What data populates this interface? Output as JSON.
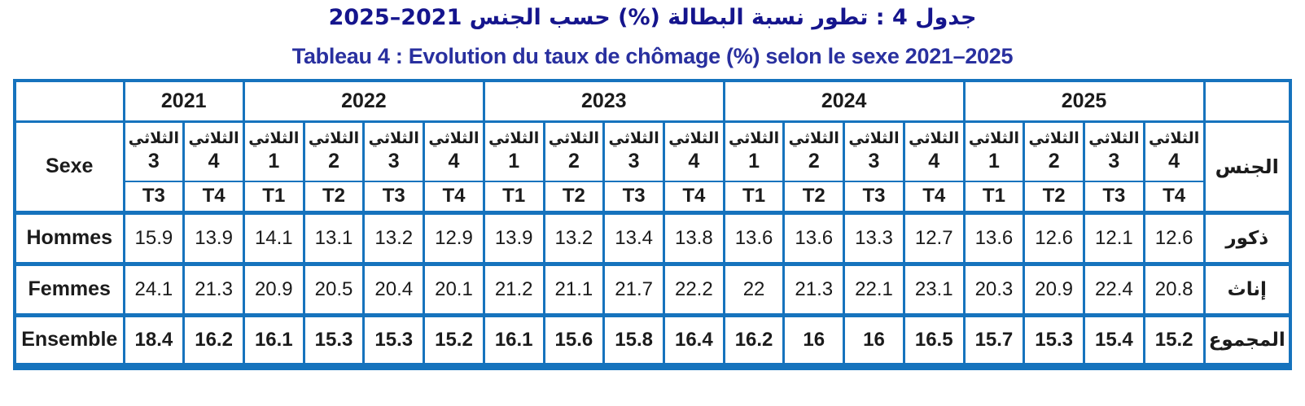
{
  "titles": {
    "arabic": "جدول 4 : تطور نسبة البطالة (%) حسب الجنس 2021–2025",
    "french": "Tableau 4 : Evolution du taux de chômage (%) selon le sexe 2021–2025"
  },
  "colors": {
    "table_border": "#1673bd",
    "title_arabic": "#15158d",
    "title_french": "#29309f",
    "text": "#1b1b1b"
  },
  "table": {
    "left_header": "Sexe",
    "right_header": "الجنس",
    "quarter_word": "الثلاثي",
    "year_groups": [
      {
        "label": "2021",
        "span": 2
      },
      {
        "label": "2022",
        "span": 4
      },
      {
        "label": "2023",
        "span": 4
      },
      {
        "label": "2024",
        "span": 4
      },
      {
        "label": "2025",
        "span": 4
      }
    ],
    "quarter_numbers": [
      "3",
      "4",
      "1",
      "2",
      "3",
      "4",
      "1",
      "2",
      "3",
      "4",
      "1",
      "2",
      "3",
      "4",
      "1",
      "2",
      "3",
      "4"
    ],
    "trimester_labels": [
      "T3",
      "T4",
      "T1",
      "T2",
      "T3",
      "T4",
      "T1",
      "T2",
      "T3",
      "T4",
      "T1",
      "T2",
      "T3",
      "T4",
      "T1",
      "T2",
      "T3",
      "T4"
    ],
    "rows": [
      {
        "label_fr": "Hommes",
        "label_ar": "ذكور",
        "bold": false,
        "values": [
          "15.9",
          "13.9",
          "14.1",
          "13.1",
          "13.2",
          "12.9",
          "13.9",
          "13.2",
          "13.4",
          "13.8",
          "13.6",
          "13.6",
          "13.3",
          "12.7",
          "13.6",
          "12.6",
          "12.1",
          "12.6"
        ]
      },
      {
        "label_fr": "Femmes",
        "label_ar": "إناث",
        "bold": false,
        "values": [
          "24.1",
          "21.3",
          "20.9",
          "20.5",
          "20.4",
          "20.1",
          "21.2",
          "21.1",
          "21.7",
          "22.2",
          "22",
          "21.3",
          "22.1",
          "23.1",
          "20.3",
          "20.9",
          "22.4",
          "20.8"
        ]
      },
      {
        "label_fr": "Ensemble",
        "label_ar": "المجموع",
        "bold": true,
        "values": [
          "18.4",
          "16.2",
          "16.1",
          "15.3",
          "15.3",
          "15.2",
          "16.1",
          "15.6",
          "15.8",
          "16.4",
          "16.2",
          "16",
          "16",
          "16.5",
          "15.7",
          "15.3",
          "15.4",
          "15.2"
        ]
      }
    ]
  },
  "chart_data": {
    "type": "table",
    "title": "Tableau 4 : Evolution du taux de chômage (%) selon le sexe 2021–2025",
    "x": [
      "2021-T3",
      "2021-T4",
      "2022-T1",
      "2022-T2",
      "2022-T3",
      "2022-T4",
      "2023-T1",
      "2023-T2",
      "2023-T3",
      "2023-T4",
      "2024-T1",
      "2024-T2",
      "2024-T3",
      "2024-T4",
      "2025-T1",
      "2025-T2",
      "2025-T3",
      "2025-T4"
    ],
    "series": [
      {
        "name": "Hommes",
        "values": [
          15.9,
          13.9,
          14.1,
          13.1,
          13.2,
          12.9,
          13.9,
          13.2,
          13.4,
          13.8,
          13.6,
          13.6,
          13.3,
          12.7,
          13.6,
          12.6,
          12.1,
          12.6
        ]
      },
      {
        "name": "Femmes",
        "values": [
          24.1,
          21.3,
          20.9,
          20.5,
          20.4,
          20.1,
          21.2,
          21.1,
          21.7,
          22.2,
          22,
          21.3,
          22.1,
          23.1,
          20.3,
          20.9,
          22.4,
          20.8
        ]
      },
      {
        "name": "Ensemble",
        "values": [
          18.4,
          16.2,
          16.1,
          15.3,
          15.3,
          15.2,
          16.1,
          15.6,
          15.8,
          16.4,
          16.2,
          16,
          16,
          16.5,
          15.7,
          15.3,
          15.4,
          15.2
        ]
      }
    ]
  }
}
